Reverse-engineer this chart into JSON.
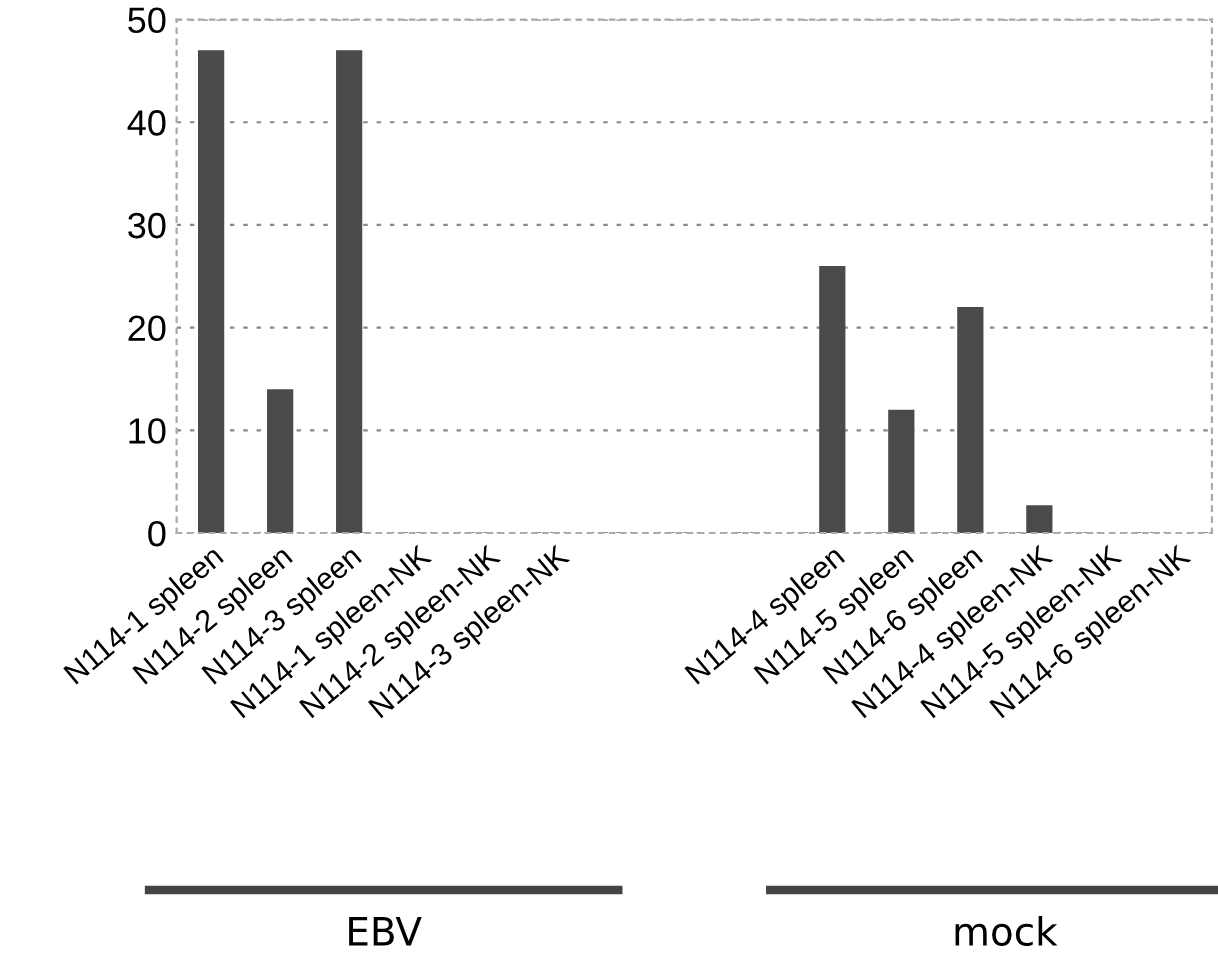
{
  "chart_data": {
    "type": "bar",
    "categories": [
      "N114-1 spleen",
      "N114-2 spleen",
      "N114-3 spleen",
      "N114-1 spleen-NK",
      "N114-2 spleen-NK",
      "N114-3 spleen-NK",
      null,
      null,
      null,
      "N114-4 spleen",
      "N114-5 spleen",
      "N114-6 spleen",
      "N114-4 spleen-NK",
      "N114-5 spleen-NK",
      "N114-6 spleen-NK"
    ],
    "values": [
      47,
      14,
      47,
      0,
      0,
      0,
      null,
      null,
      null,
      26,
      12,
      22,
      2.7,
      0,
      0
    ],
    "color": "#4a4a4a",
    "ylim": [
      0,
      50
    ],
    "yticks": [
      0,
      10,
      20,
      30,
      40,
      50
    ],
    "grid": "y",
    "annotations": [
      "EBV",
      "mock"
    ]
  }
}
